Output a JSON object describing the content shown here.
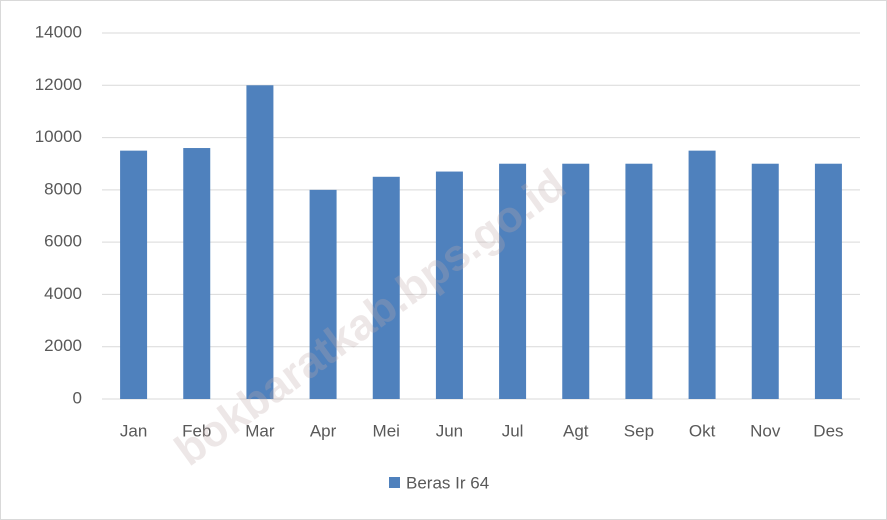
{
  "chart_data": {
    "type": "bar",
    "categories": [
      "Jan",
      "Feb",
      "Mar",
      "Apr",
      "Mei",
      "Jun",
      "Jul",
      "Agt",
      "Sep",
      "Okt",
      "Nov",
      "Des"
    ],
    "series": [
      {
        "name": "Beras Ir 64",
        "color": "#4f81bd",
        "values": [
          9500,
          9600,
          12000,
          8000,
          8500,
          8700,
          9000,
          9000,
          9000,
          9500,
          9000,
          9000
        ]
      }
    ],
    "ylim": [
      0,
      14000
    ],
    "yticks": [
      0,
      2000,
      4000,
      6000,
      8000,
      10000,
      12000,
      14000
    ],
    "grid": true,
    "legend": "bottom",
    "watermark": "bokbaratkab.bps.go.id"
  }
}
